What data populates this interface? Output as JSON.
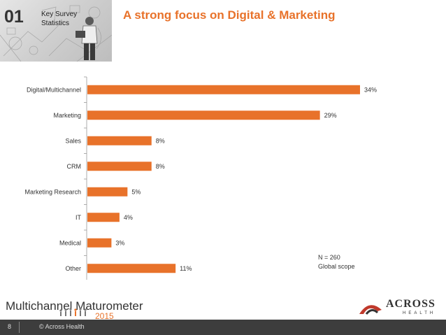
{
  "header": {
    "section_number": "01",
    "section_label": "Key Survey Statistics",
    "title": "A strong focus on Digital & Marketing"
  },
  "chart_data": {
    "type": "bar",
    "orientation": "horizontal",
    "categories": [
      "Digital/Multichannel",
      "Marketing",
      "Sales",
      "CRM",
      "Marketing Research",
      "IT",
      "Medical",
      "Other"
    ],
    "values": [
      34,
      29,
      8,
      8,
      5,
      4,
      3,
      11
    ],
    "data_labels": [
      "34%",
      "29%",
      "8%",
      "8%",
      "5%",
      "4%",
      "3%",
      "11%"
    ],
    "unit": "%",
    "xlim": [
      0,
      34
    ],
    "grid": false,
    "bar_color": "#e8722a"
  },
  "note": {
    "line1": "N = 260",
    "line2": "Global scope"
  },
  "brand": {
    "name": "Multichannel Maturometer",
    "year": "2015"
  },
  "logo": {
    "name": "ACROSS",
    "sub": "HEALTH",
    "icon": "across-arrow-icon"
  },
  "footer": {
    "page": "8",
    "copyright": "© Across Health"
  },
  "colors": {
    "accent": "#e8722a",
    "dark": "#333333",
    "footer": "#3d3d3d",
    "logo_red": "#c0392b"
  }
}
